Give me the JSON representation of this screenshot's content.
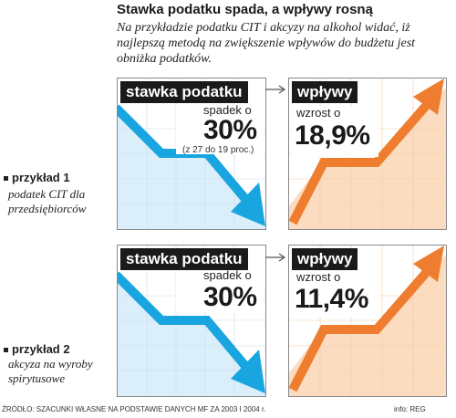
{
  "header": {
    "title": "Stawka podatku spada, a wpływy rosną",
    "lead": "Na przykładzie podatku CIT i akcyzy na alkohol widać, iż najlepszą metodą na zwiększenie wpływów do budżetu jest obniżka podatków."
  },
  "colors": {
    "tax_line": "#19a5e0",
    "tax_fill": "#dbeffa",
    "revenue_line": "#ee7d2f",
    "revenue_fill": "#fcdcc0",
    "label_bg": "#1a1a1a"
  },
  "examples": [
    {
      "title": "przykład 1",
      "subtitle": "podatek CIT dla przedsiębiorców",
      "tax": {
        "label": "stawka podatku",
        "caption": "spadek o",
        "value": "30%",
        "note": "(z 27 do 19 proc.)"
      },
      "revenue": {
        "label": "wpływy",
        "caption": "wzrost o",
        "value": "18,9%"
      }
    },
    {
      "title": "przykład 2",
      "subtitle": "akcyza na wyroby spirytusowe",
      "tax": {
        "label": "stawka podatku",
        "caption": "spadek o",
        "value": "30%",
        "note": ""
      },
      "revenue": {
        "label": "wpływy",
        "caption": "wzrost o",
        "value": "11,4%"
      }
    }
  ],
  "chart_data": [
    {
      "type": "line",
      "title": "stawka podatku",
      "annotation": "spadek o 30% (z 27 do 19 proc.)",
      "series": [
        {
          "values": [
            27,
            19
          ]
        }
      ]
    },
    {
      "type": "line",
      "title": "wpływy",
      "annotation": "wzrost o 18,9%",
      "series": [
        {
          "values": [
            100,
            118.9
          ]
        }
      ]
    },
    {
      "type": "line",
      "title": "stawka podatku",
      "annotation": "spadek o 30%",
      "series": [
        {
          "values": [
            100,
            70
          ]
        }
      ]
    },
    {
      "type": "line",
      "title": "wpływy",
      "annotation": "wzrost o 11,4%",
      "series": [
        {
          "values": [
            100,
            111.4
          ]
        }
      ]
    }
  ],
  "footer": {
    "source": "ŹRÓDŁO: SZACUNKI WŁASNE NA PODSTAWIE DANYCH MF ZA 2003 I 2004 r.",
    "credit": "info: REG"
  }
}
